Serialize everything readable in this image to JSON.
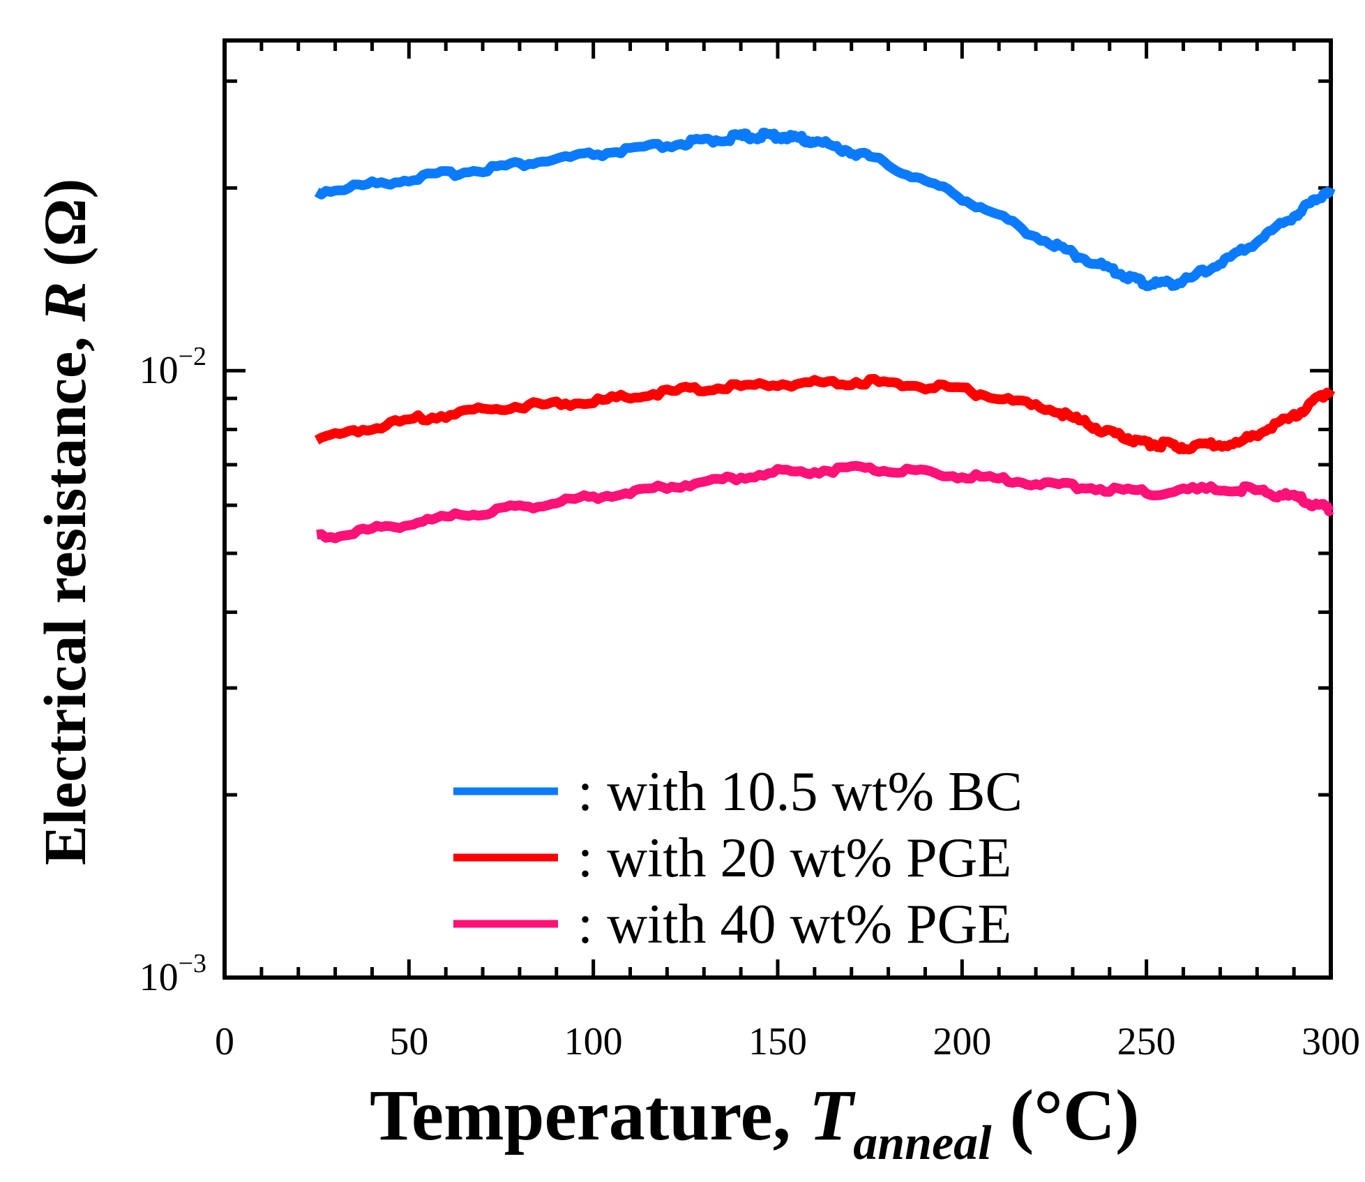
{
  "chart_data": {
    "type": "line",
    "title": "",
    "xlabel_main": "Temperature, ",
    "xlabel_var": "T",
    "xlabel_sub": "anneal",
    "xlabel_unit": " (°C)",
    "ylabel_main": "Electrical resistance, ",
    "ylabel_var": "R",
    "ylabel_unit": " (Ω)",
    "xlim": [
      0,
      300
    ],
    "ylim": [
      0.001,
      0.035
    ],
    "yscale": "log",
    "x_ticks": [
      0,
      50,
      100,
      150,
      200,
      250,
      300
    ],
    "x_tick_labels": [
      "0",
      "50",
      "100",
      "150",
      "200",
      "250",
      "300"
    ],
    "y_major_ticks": [
      {
        "value": 0.01,
        "base": "10",
        "exp": "−2"
      },
      {
        "value": 0.001,
        "base": "10",
        "exp": "−3"
      }
    ],
    "legend_position": "bottom-right",
    "series": [
      {
        "name": ": with 10.5 wt% BC",
        "color": "#0a7bff",
        "x": [
          25,
          50,
          75,
          100,
          125,
          140,
          150,
          160,
          175,
          200,
          225,
          240,
          250,
          260,
          275,
          290,
          300
        ],
        "values": [
          0.0197,
          0.0207,
          0.0217,
          0.0227,
          0.0237,
          0.0243,
          0.0244,
          0.0239,
          0.0225,
          0.0193,
          0.0161,
          0.0147,
          0.0139,
          0.014,
          0.0156,
          0.018,
          0.02
        ]
      },
      {
        "name": ": with 20 wt% PGE",
        "color": "#ff0000",
        "x": [
          25,
          50,
          75,
          100,
          125,
          150,
          175,
          200,
          225,
          240,
          250,
          260,
          275,
          290,
          300
        ],
        "values": [
          0.0077,
          0.0083,
          0.0087,
          0.0089,
          0.0093,
          0.0095,
          0.0096,
          0.0093,
          0.0086,
          0.0079,
          0.0076,
          0.0075,
          0.0076,
          0.0084,
          0.0093
        ]
      },
      {
        "name": ": with 40 wt% PGE",
        "color": "#ff1177",
        "x": [
          25,
          50,
          75,
          100,
          125,
          150,
          175,
          200,
          225,
          250,
          275,
          290,
          300
        ],
        "values": [
          0.0053,
          0.0056,
          0.0059,
          0.0062,
          0.0065,
          0.0068,
          0.0069,
          0.0067,
          0.0065,
          0.0063,
          0.0064,
          0.0062,
          0.0059
        ]
      }
    ]
  }
}
